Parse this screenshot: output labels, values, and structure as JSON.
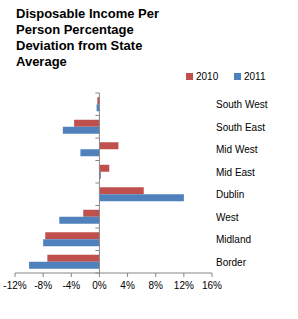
{
  "chart_data": {
    "type": "bar",
    "orientation": "horizontal",
    "title": "Disposable Income Per Person Percentage Deviation from State Average",
    "categories": [
      "South West",
      "South East",
      "Mid West",
      "Mid East",
      "Dublin",
      "West",
      "Midland",
      "Border"
    ],
    "series": [
      {
        "name": "2010",
        "color": "#c0504d",
        "values": [
          -0.3,
          -3.6,
          2.7,
          1.4,
          6.3,
          -2.3,
          -7.7,
          -7.4
        ]
      },
      {
        "name": "2011",
        "color": "#4f81bd",
        "values": [
          -0.4,
          -5.2,
          -2.7,
          0.2,
          12.0,
          -5.7,
          -8.0,
          -10.0
        ]
      }
    ],
    "xlim": [
      -12,
      16
    ],
    "xticks": [
      {
        "value": -12,
        "label": "-12%"
      },
      {
        "value": -8,
        "label": "-8%"
      },
      {
        "value": -4,
        "label": "-4%"
      },
      {
        "value": 0,
        "label": "0%"
      },
      {
        "value": 4,
        "label": "4%"
      },
      {
        "value": 8,
        "label": "8%"
      },
      {
        "value": 12,
        "label": "12%"
      },
      {
        "value": 16,
        "label": "16%"
      }
    ],
    "legend": "top",
    "grid": false
  }
}
